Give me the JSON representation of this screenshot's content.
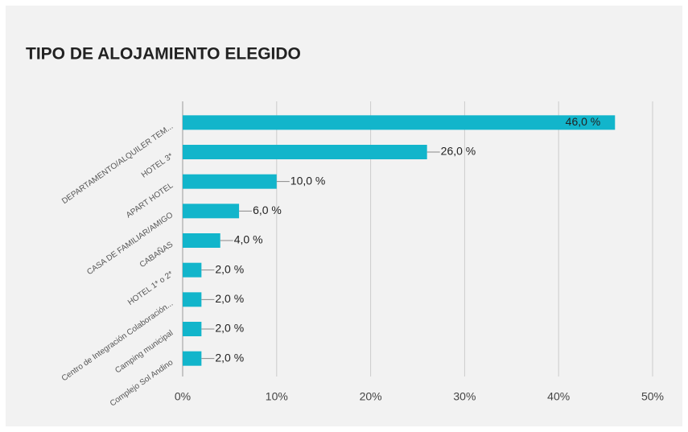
{
  "chart_data": {
    "type": "bar",
    "orientation": "horizontal",
    "title": "TIPO DE ALOJAMIENTO ELEGIDO",
    "categories": [
      "DEPARTAMENTO/ALQUILER TEM...",
      "HOTEL 3*",
      "APART HOTEL",
      "CASA DE FAMILIAR/AMIGO",
      "CABAÑAS",
      "HOTEL 1* o 2*",
      "Centro de Integración Colaboración...",
      "Camping municipal",
      "Complejo Sol Andino"
    ],
    "values": [
      46,
      26,
      10,
      6,
      4,
      2,
      2,
      2,
      2
    ],
    "value_labels": [
      "46,0 %",
      "26,0 %",
      "10,0 %",
      "6,0 %",
      "4,0 %",
      "2,0 %",
      "2,0 %",
      "2,0 %",
      "2,0 %"
    ],
    "color": "#12b5cb",
    "xlim": [
      0,
      50
    ],
    "xticks": [
      {
        "value": 0,
        "label": "0%"
      },
      {
        "value": 10,
        "label": "10%"
      },
      {
        "value": 20,
        "label": "20%"
      },
      {
        "value": 30,
        "label": "30%"
      },
      {
        "value": 40,
        "label": "40%"
      },
      {
        "value": 50,
        "label": "50%"
      }
    ],
    "grid": true
  }
}
